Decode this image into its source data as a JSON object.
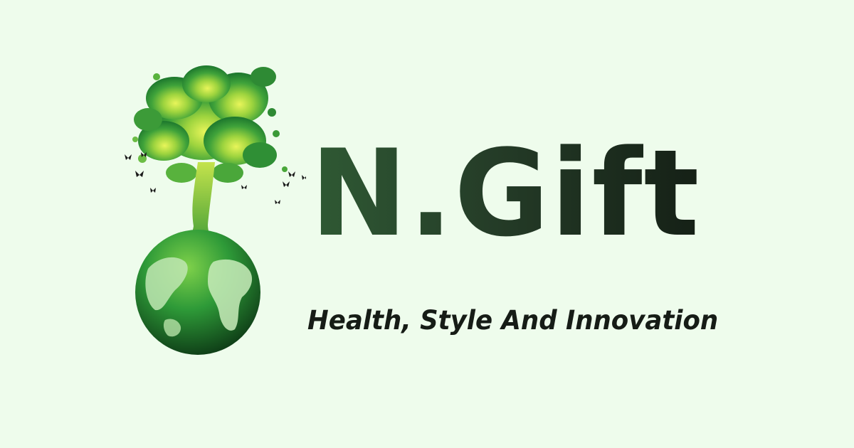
{
  "brand": {
    "name": "N.Gift",
    "tagline": "Health, Style And Innovation",
    "logo_icon": "tree-on-globe-icon"
  },
  "colors": {
    "background": "#eefcec",
    "title": "#2b4a30",
    "tagline": "#161c16",
    "leaf_light": "#d6ef46",
    "leaf_dark": "#1e7a2d",
    "globe_dark": "#0f3a18"
  }
}
